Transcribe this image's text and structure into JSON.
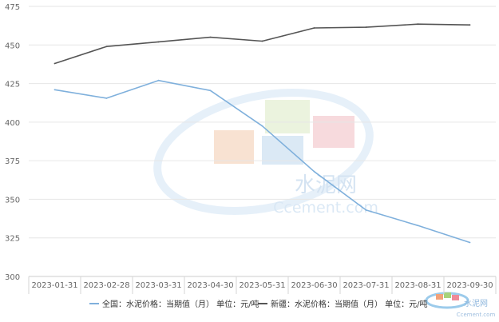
{
  "chart_data": {
    "type": "line",
    "categories": [
      "2023-01-31",
      "2023-02-28",
      "2023-03-31",
      "2023-04-30",
      "2023-05-31",
      "2023-06-30",
      "2023-07-31",
      "2023-08-31",
      "2023-09-30"
    ],
    "series": [
      {
        "name": "全国：水泥价格：当期值（月）  单位：元/吨",
        "color": "#7fb0dc",
        "values": [
          421,
          415.5,
          427,
          420.5,
          397.5,
          368,
          343,
          333,
          322
        ]
      },
      {
        "name": "新疆：水泥价格：当期值（月）  单位：元/吨",
        "color": "#555555",
        "values": [
          438,
          449,
          452,
          455,
          452.5,
          461,
          461.5,
          463.5,
          463
        ]
      }
    ],
    "ylim": [
      300,
      475
    ],
    "yticks": [
      300,
      325,
      350,
      375,
      400,
      425,
      450,
      475
    ],
    "grid": true,
    "legend_position": "bottom"
  },
  "watermark": {
    "main_cn": "水泥网",
    "main_en": "Ccement.com",
    "corner_cn": "水泥网",
    "corner_en": "Ccement.com"
  }
}
